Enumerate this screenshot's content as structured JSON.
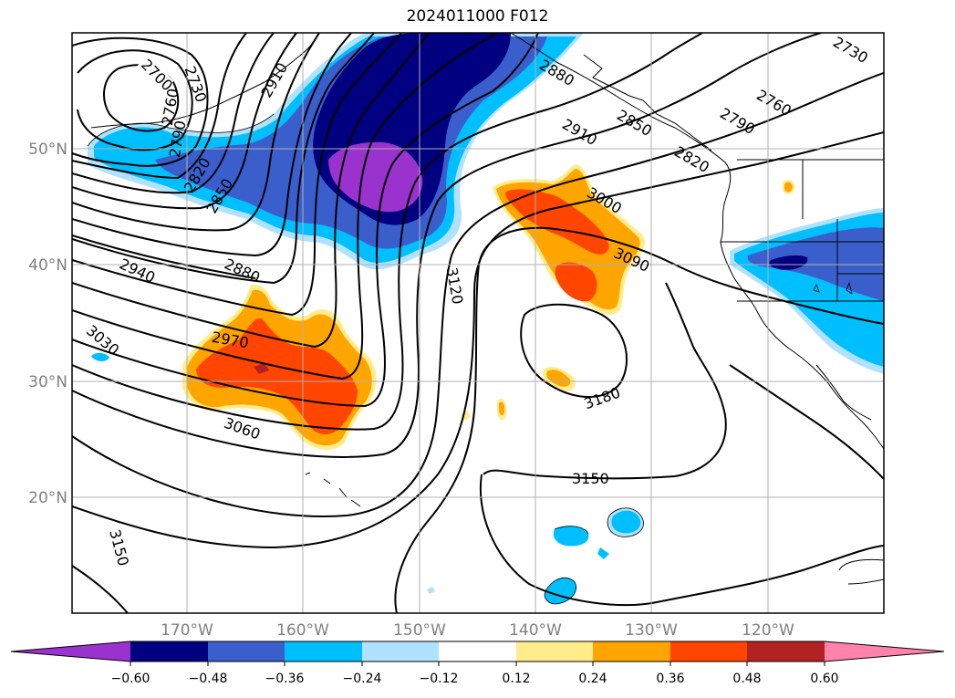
{
  "title": "2024011000 F012",
  "latitude_labels": [
    "50°N",
    "40°N",
    "30°N",
    "20°N"
  ],
  "longitude_labels": [
    "170°W",
    "160°W",
    "150°W",
    "140°W",
    "130°W",
    "120°W"
  ],
  "contour_labels": [
    "2700",
    "2730",
    "2760",
    "2790",
    "2820",
    "2850",
    "2910",
    "2880",
    "2910",
    "2850",
    "2820",
    "2790",
    "2760",
    "2730",
    "3000",
    "3090",
    "2940",
    "2880",
    "3120",
    "2970",
    "3030",
    "3060",
    "3180",
    "3150",
    "3150"
  ],
  "colorbar": {
    "ticks": [
      "−0.60",
      "−0.48",
      "−0.36",
      "−0.24",
      "−0.12",
      "0.12",
      "0.24",
      "0.36",
      "0.48",
      "0.60"
    ],
    "colors": [
      "#9a32cd",
      "#000080",
      "#3a5fcd",
      "#00bfff",
      "#b0e2ff",
      "#ffffff",
      "#ffec8b",
      "#ffa500",
      "#ff4500",
      "#b22222",
      "#ff82ab"
    ]
  },
  "colors": {
    "strong_negative": "#9a32cd",
    "deep_negative": "#000080",
    "mid_negative": "#3a5fcd",
    "light_negative": "#00bfff",
    "faint_negative": "#b0e2ff",
    "faint_positive": "#ffec8b",
    "light_positive": "#ffa500",
    "mid_positive": "#ff4500",
    "deep_positive": "#b22222"
  }
}
